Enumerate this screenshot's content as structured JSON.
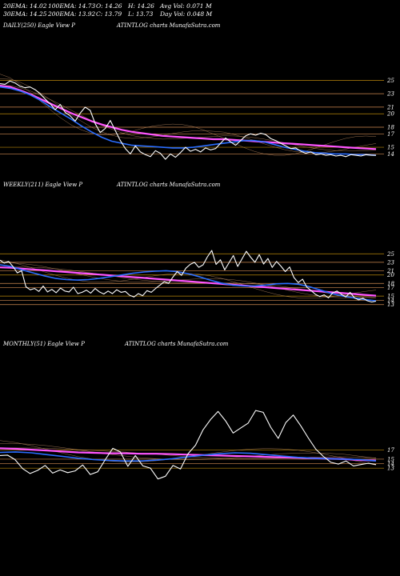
{
  "header": {
    "row1": [
      "20EMA: 14.02",
      "100EMA: 14.73",
      "O: 14.26",
      "H: 14.26",
      "Avg Vol: 0.071 M"
    ],
    "row2": [
      "30EMA: 14.25",
      "200EMA: 13.92",
      "C: 13.79",
      "L: 13.73",
      "Day Vol: 0.048 M"
    ]
  },
  "panels": [
    {
      "left_label": "DAILY(250) Eagle  View  P",
      "center_label": "ATINTLOG charts MunafaSutra.com",
      "yticks": [
        "25",
        "23",
        "21",
        "20",
        "18",
        "17",
        "15",
        "14"
      ]
    },
    {
      "left_label": "WEEKLY(211) Eagle  View  P",
      "center_label": "ATINTLOG charts MunafaSutra.com",
      "yticks": [
        "25",
        "23",
        "21",
        "20",
        "18",
        "17",
        "15",
        "14",
        "13"
      ]
    },
    {
      "left_label": "MONTHLY(51) Eagle  View  P",
      "center_label": "ATINTLOG charts MunafaSutra.com",
      "yticks": [
        "17",
        "15",
        "14",
        "13"
      ]
    }
  ],
  "colors": {
    "background": "#000000",
    "price": "#ffffff",
    "ema_short": "#2a6dff",
    "ema_long": "#ff55ff",
    "ma_thin": "#d9a070",
    "level": "#d08a50",
    "level_strong": "#b8860b"
  },
  "chart_data": [
    {
      "type": "line",
      "timeframe": "daily",
      "bars": 250,
      "ylim": [
        12.5,
        26
      ],
      "levels": [
        25,
        23,
        21,
        20,
        18,
        17,
        15,
        14
      ],
      "series": [
        {
          "values": [
            24.5,
            24.4,
            24.9,
            24.6,
            24.1,
            23.9,
            24.0,
            23.6,
            23.0,
            22.2,
            21.5,
            20.6,
            21.4,
            20.2,
            19.7,
            18.9,
            20.1,
            21.0,
            20.5,
            18.5,
            17.2,
            17.8,
            19.0,
            17.5,
            16.0,
            14.8,
            14.0,
            15.2,
            14.3,
            13.9,
            13.6,
            14.5,
            14.1,
            13.2,
            14.0,
            13.5,
            14.2,
            15.0,
            14.4,
            14.7,
            14.3,
            14.9,
            14.6,
            14.8,
            15.6,
            16.4,
            15.8,
            15.3,
            16.0,
            16.7,
            17.0,
            16.8,
            17.1,
            16.9,
            16.3,
            16.0,
            15.6,
            15.2,
            14.8,
            14.9,
            14.4,
            14.1,
            14.3,
            13.9,
            14.0,
            13.8,
            13.9,
            13.7,
            13.8,
            13.6,
            13.9,
            13.8,
            13.7,
            13.9,
            13.8,
            13.79
          ]
        },
        {
          "values": [
            24.0,
            23.8,
            23.4,
            22.8,
            22.0,
            21.0,
            20.1,
            19.2,
            18.2,
            17.3,
            16.5,
            15.9,
            15.6,
            15.3,
            15.2,
            15.1,
            15.0,
            14.9,
            14.9,
            15.0,
            15.2,
            15.4,
            15.6,
            15.8,
            16.0,
            16.0,
            15.8,
            15.4,
            15.0,
            14.7,
            14.4,
            14.2,
            14.1,
            14.0,
            14.0,
            13.9,
            13.9,
            13.8
          ]
        },
        {
          "values": [
            24.2,
            24.0,
            23.5,
            22.9,
            22.2,
            21.5,
            20.8,
            20.1,
            19.5,
            18.9,
            18.4,
            18.0,
            17.6,
            17.3,
            17.1,
            16.9,
            16.7,
            16.6,
            16.5,
            16.4,
            16.3,
            16.2,
            16.2,
            16.1,
            16.0,
            15.9,
            15.8,
            15.7,
            15.6,
            15.5,
            15.4,
            15.3,
            15.2,
            15.1,
            15.0,
            14.9,
            14.8,
            14.73
          ]
        }
      ]
    },
    {
      "type": "line",
      "timeframe": "weekly",
      "bars": 211,
      "ylim": [
        12,
        26
      ],
      "levels": [
        25,
        23,
        21,
        20,
        18,
        17,
        15,
        14,
        13
      ],
      "series": [
        {
          "values": [
            23.5,
            22.8,
            23.2,
            22.0,
            20.5,
            21.0,
            17.2,
            16.5,
            16.8,
            16.1,
            17.4,
            16.0,
            16.6,
            15.8,
            16.9,
            16.2,
            16.0,
            17.1,
            15.6,
            15.9,
            16.4,
            15.7,
            16.8,
            16.0,
            15.5,
            16.2,
            15.6,
            16.5,
            15.9,
            16.1,
            15.2,
            14.8,
            15.6,
            15.1,
            16.3,
            15.9,
            16.8,
            17.6,
            18.4,
            18.0,
            19.5,
            20.8,
            19.9,
            21.6,
            22.5,
            23.0,
            21.8,
            22.4,
            24.3,
            25.8,
            22.5,
            23.6,
            21.2,
            22.9,
            24.6,
            22.0,
            23.8,
            25.6,
            24.2,
            23.0,
            24.8,
            22.6,
            23.9,
            21.8,
            23.2,
            22.1,
            20.8,
            21.9,
            19.4,
            18.2,
            19.0,
            17.1,
            16.3,
            15.4,
            14.9,
            15.3,
            14.6,
            15.8,
            16.2,
            15.4,
            14.8,
            15.9,
            14.6,
            14.1,
            14.5,
            13.9,
            13.6,
            13.8
          ]
        },
        {
          "values": [
            22.4,
            22.0,
            21.2,
            20.5,
            19.8,
            19.2,
            18.9,
            18.8,
            18.9,
            19.2,
            19.6,
            20.0,
            20.4,
            20.7,
            20.9,
            21.0,
            20.8,
            20.3,
            19.6,
            18.8,
            18.1,
            17.6,
            17.4,
            17.4,
            17.6,
            17.9,
            18.0,
            17.8,
            17.2,
            16.4,
            15.6,
            15.0,
            14.6,
            14.2,
            13.9
          ]
        },
        {
          "values": [
            21.8,
            21.7,
            21.5,
            21.3,
            21.1,
            20.9,
            20.7,
            20.5,
            20.3,
            20.1,
            19.9,
            19.7,
            19.5,
            19.3,
            19.1,
            18.9,
            18.7,
            18.5,
            18.3,
            18.1,
            17.9,
            17.7,
            17.5,
            17.3,
            17.1,
            16.9,
            16.7,
            16.5,
            16.3,
            16.1,
            15.9,
            15.7,
            15.5,
            15.3,
            15.1
          ]
        }
      ]
    },
    {
      "type": "line",
      "timeframe": "monthly",
      "bars": 51,
      "ylim": [
        12.5,
        26
      ],
      "levels": [
        17,
        15,
        14,
        13
      ],
      "series": [
        {
          "values": [
            15.8,
            15.9,
            14.9,
            12.9,
            11.8,
            12.5,
            13.6,
            11.9,
            12.6,
            12.0,
            12.4,
            13.7,
            11.6,
            12.2,
            14.9,
            17.4,
            16.6,
            13.4,
            15.8,
            13.5,
            13.0,
            10.6,
            11.2,
            13.6,
            12.8,
            16.2,
            18.1,
            21.5,
            23.8,
            25.6,
            23.5,
            20.8,
            21.9,
            23.0,
            25.8,
            25.4,
            22.1,
            19.6,
            23.1,
            24.8,
            22.4,
            19.7,
            17.2,
            15.6,
            14.3,
            13.9,
            14.6,
            13.5,
            13.8,
            14.1,
            13.79
          ]
        },
        {
          "values": [
            16.5,
            16.6,
            16.4,
            16.0,
            15.6,
            15.2,
            14.9,
            14.7,
            14.6,
            14.6,
            14.8,
            15.1,
            15.5,
            15.9,
            16.2,
            16.4,
            16.3,
            16.0,
            15.7,
            15.4,
            15.2,
            15.1,
            15.0,
            14.9,
            14.6
          ]
        },
        {
          "values": [
            17.4,
            17.3,
            17.1,
            16.9,
            16.7,
            16.5,
            16.4,
            16.3,
            16.3,
            16.2,
            16.2,
            16.1,
            16.0,
            15.9,
            15.8,
            15.7,
            15.6,
            15.5,
            15.4,
            15.3,
            15.2,
            15.1,
            15.0,
            14.8,
            14.7
          ]
        }
      ]
    }
  ]
}
